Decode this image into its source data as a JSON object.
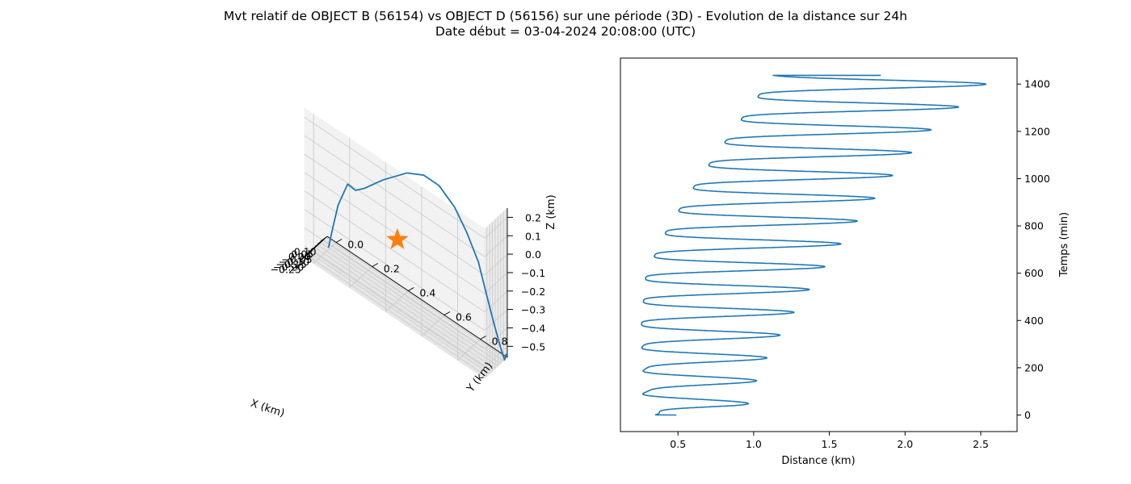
{
  "figure": {
    "title_line1": "Mvt relatif de OBJECT B (56154) vs OBJECT D (56156) sur une période (3D) - Evolution de la distance sur 24h",
    "title_line2": "Date début = 03-04-2024 20:08:00 (UTC)"
  },
  "colors": {
    "trajectory": "#1f77b4",
    "marker": "#ff7f0e",
    "pane": "#f2f2f2",
    "grid": "#cccccc"
  },
  "chart_data": [
    {
      "type": "line3d",
      "xlabel": "X (km)",
      "ylabel": "Y (km)",
      "zlabel": "Z (km)",
      "xticks": [
        "−0.25",
        "−0.20",
        "−0.15",
        "−0.10",
        "−0.05",
        "0.00",
        "0.05",
        "0.10"
      ],
      "yticks": [
        "0.0",
        "0.2",
        "0.4",
        "0.6",
        "0.8"
      ],
      "zticks": [
        "0.2",
        "0.1",
        "0.0",
        "−0.1",
        "−0.2",
        "−0.3",
        "−0.4",
        "−0.5"
      ],
      "xlim": [
        -0.29,
        0.12
      ],
      "ylim": [
        -0.05,
        0.95
      ],
      "zlim": [
        -0.56,
        0.25
      ],
      "grid": true,
      "marker": {
        "symbol": "star",
        "x": -0.24,
        "y": 0.45,
        "z": -0.15
      },
      "trajectory": {
        "x": [
          -0.02,
          -0.1,
          -0.17,
          -0.26,
          -0.25,
          -0.23,
          -0.17,
          -0.1,
          -0.06,
          -0.04,
          -0.02,
          0.0,
          0.02,
          0.04,
          0.05,
          0.06,
          0.07,
          0.07
        ],
        "y": [
          0.0,
          0.05,
          0.1,
          0.18,
          0.22,
          0.26,
          0.35,
          0.46,
          0.54,
          0.62,
          0.7,
          0.76,
          0.82,
          0.86,
          0.9,
          0.93,
          0.95,
          0.96
        ],
        "z": [
          -0.55,
          -0.38,
          -0.21,
          -0.02,
          -0.03,
          0.0,
          0.09,
          0.18,
          0.21,
          0.2,
          0.13,
          0.03,
          -0.1,
          -0.26,
          -0.4,
          -0.5,
          -0.56,
          -0.52
        ]
      }
    },
    {
      "type": "line",
      "xlabel": "Distance (km)",
      "ylabel": "Temps (min)",
      "xticks": [
        "0.5",
        "1.0",
        "1.5",
        "2.0",
        "2.5"
      ],
      "yticks": [
        "0",
        "200",
        "400",
        "600",
        "800",
        "1000",
        "1200",
        "1400"
      ],
      "xlim": [
        0.12,
        2.74
      ],
      "ylim": [
        -70,
        1510
      ],
      "y_axis_side": "right",
      "series": [
        {
          "period_min": 96.5,
          "envelope_max_x": [
            [
              0,
              0.49
            ],
            [
              40,
              0.96
            ],
            [
              200,
              1.05
            ],
            [
              400,
              1.23
            ],
            [
              600,
              1.44
            ],
            [
              800,
              1.66
            ],
            [
              1000,
              1.9
            ],
            [
              1200,
              2.16
            ],
            [
              1440,
              2.61
            ]
          ],
          "envelope_min_x": [
            [
              0,
              0.35
            ],
            [
              40,
              0.29
            ],
            [
              200,
              0.28
            ],
            [
              330,
              0.26
            ],
            [
              400,
              0.26
            ],
            [
              600,
              0.29
            ],
            [
              800,
              0.44
            ],
            [
              1000,
              0.64
            ],
            [
              1200,
              0.86
            ],
            [
              1410,
              1.1
            ]
          ],
          "end": {
            "x": 1.84,
            "y": 1437
          }
        }
      ]
    }
  ]
}
